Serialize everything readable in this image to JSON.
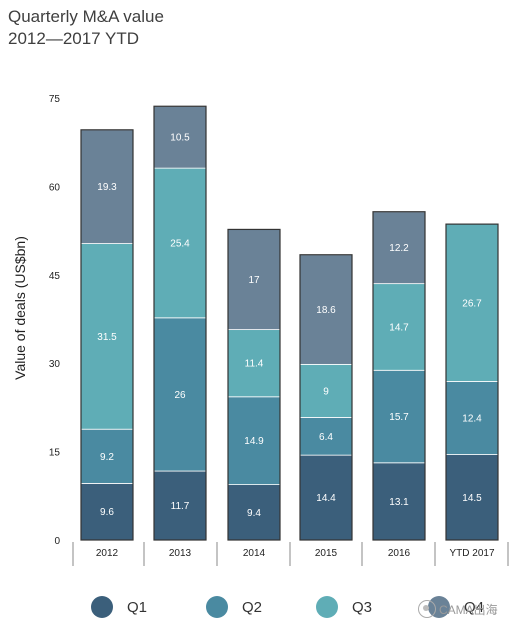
{
  "title_line1": "Quarterly M&A value",
  "title_line2": "2012—2017 YTD",
  "watermark": "CAMA出海",
  "chart_data": {
    "type": "bar",
    "stacked": true,
    "title": "Quarterly M&A value 2012—2017 YTD",
    "xlabel": "",
    "ylabel": "Value of deals (US$bn)",
    "ylim": [
      0,
      75
    ],
    "yticks": [
      0,
      15,
      30,
      45,
      60,
      75
    ],
    "grid": false,
    "legend_position": "bottom",
    "categories": [
      "2012",
      "2013",
      "2014",
      "2015",
      "2016",
      "YTD 2017"
    ],
    "series": [
      {
        "name": "Q1",
        "color": "#3b5f7b",
        "values": [
          9.6,
          11.7,
          9.4,
          14.4,
          13.1,
          14.5
        ]
      },
      {
        "name": "Q2",
        "color": "#4a8aa1",
        "values": [
          9.2,
          26,
          14.9,
          6.4,
          15.7,
          12.4
        ]
      },
      {
        "name": "Q3",
        "color": "#5fadb6",
        "values": [
          31.5,
          25.4,
          11.4,
          9,
          14.7,
          26.7
        ]
      },
      {
        "name": "Q4",
        "color": "#6a8297",
        "values": [
          19.3,
          10.5,
          17,
          18.6,
          12.2,
          null
        ]
      }
    ]
  }
}
